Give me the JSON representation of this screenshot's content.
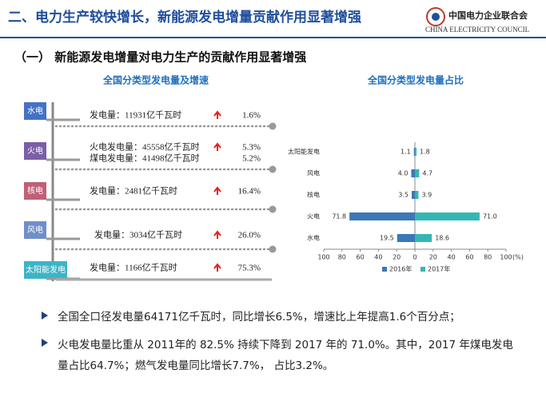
{
  "header": {
    "title": "二、电力生产较快增长，新能源发电增量贡献作用显著增强",
    "logo_cn": "中国电力企业联合会",
    "logo_en": "CHINA ELECTRICITY COUNCIL"
  },
  "section_title": "（一） 新能源发电增量对电力生产的贡献作用显著增强",
  "left_panel": {
    "title": "全国分类型发电量及增速",
    "items": [
      {
        "tag": "水电",
        "lines": [
          {
            "text": "发电量：11931亿千瓦时",
            "growth": "1.6%"
          }
        ]
      },
      {
        "tag": "火电",
        "lines": [
          {
            "text": "火电发电量：45558亿千瓦时",
            "growth": "5.3%"
          },
          {
            "text": "煤电发电量：41498亿千瓦时",
            "growth": "5.2%"
          }
        ]
      },
      {
        "tag": "核电",
        "lines": [
          {
            "text": "发电量：2481亿千瓦时",
            "growth": "16.4%"
          }
        ]
      },
      {
        "tag": "风电",
        "lines": [
          {
            "text": "发电量：3034亿千瓦时",
            "growth": "26.0%"
          }
        ]
      },
      {
        "tag": "太阳能发电",
        "lines": [
          {
            "text": "发电量：1166亿千瓦时",
            "growth": "75.3%"
          }
        ]
      }
    ]
  },
  "chart_data": {
    "type": "butterfly-bar",
    "title": "全国分类型发电量占比",
    "categories": [
      "太阳能发电",
      "风电",
      "核电",
      "火电",
      "水电"
    ],
    "series": [
      {
        "name": "2016年",
        "color": "#3a78b8",
        "side": "left",
        "values": [
          1.1,
          4.0,
          3.5,
          71.8,
          19.5
        ],
        "value_labels": [
          "1.1",
          "4.0",
          "3.5",
          "71.8",
          "19.5"
        ]
      },
      {
        "name": "2017年",
        "color": "#35b6b4",
        "side": "right",
        "values": [
          1.8,
          4.7,
          3.9,
          71.0,
          18.6
        ],
        "value_labels": [
          "1.8",
          "4.7",
          "3.9",
          "71.0",
          "18.6"
        ]
      }
    ],
    "xlim": [
      -100,
      100
    ],
    "xticks": [
      {
        "value": -100,
        "label": "100"
      },
      {
        "value": -80,
        "label": "80"
      },
      {
        "value": -60,
        "label": "60"
      },
      {
        "value": -40,
        "label": "40"
      },
      {
        "value": -20,
        "label": "20"
      },
      0,
      20,
      40,
      60,
      80,
      100
    ],
    "x_unit": "(%)",
    "legend": "bottom"
  },
  "bullets": [
    "全国全口径发电量64171亿千瓦时，同比增长6.5%，增速比上年提高1.6个百分点；",
    "火电发电量比重从 2011年的 82.5% 持续下降到 2017 年的 71.0%。其中，2017 年煤电发电量占比64.7%；燃气发电量同比增长7.7%， 占比3.2%。"
  ]
}
